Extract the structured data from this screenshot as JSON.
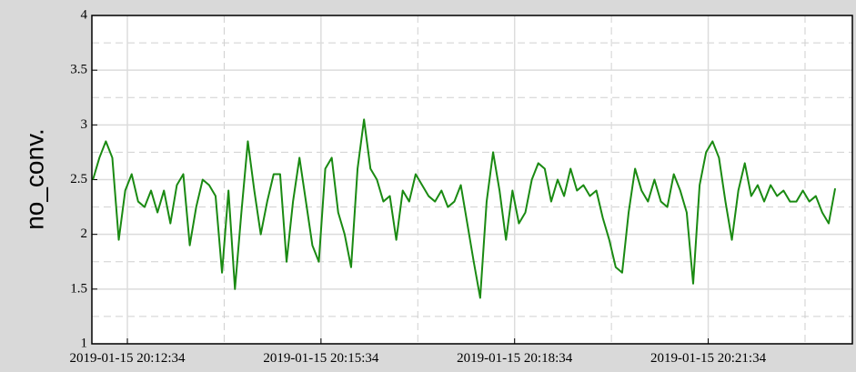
{
  "chart_data": {
    "type": "line",
    "y_label": "no_conv.",
    "x": [
      "2019-01-15 20:12:02",
      "2019-01-15 20:12:08",
      "2019-01-15 20:12:14",
      "2019-01-15 20:12:20",
      "2019-01-15 20:12:26",
      "2019-01-15 20:12:32",
      "2019-01-15 20:12:38",
      "2019-01-15 20:12:44",
      "2019-01-15 20:12:50",
      "2019-01-15 20:12:56",
      "2019-01-15 20:13:02",
      "2019-01-15 20:13:08",
      "2019-01-15 20:13:14",
      "2019-01-15 20:13:20",
      "2019-01-15 20:13:26",
      "2019-01-15 20:13:32",
      "2019-01-15 20:13:38",
      "2019-01-15 20:13:44",
      "2019-01-15 20:13:50",
      "2019-01-15 20:13:56",
      "2019-01-15 20:14:02",
      "2019-01-15 20:14:08",
      "2019-01-15 20:14:14",
      "2019-01-15 20:14:20",
      "2019-01-15 20:14:26",
      "2019-01-15 20:14:32",
      "2019-01-15 20:14:38",
      "2019-01-15 20:14:44",
      "2019-01-15 20:14:50",
      "2019-01-15 20:14:56",
      "2019-01-15 20:15:02",
      "2019-01-15 20:15:08",
      "2019-01-15 20:15:14",
      "2019-01-15 20:15:20",
      "2019-01-15 20:15:26",
      "2019-01-15 20:15:32",
      "2019-01-15 20:15:38",
      "2019-01-15 20:15:44",
      "2019-01-15 20:15:50",
      "2019-01-15 20:15:56",
      "2019-01-15 20:16:02",
      "2019-01-15 20:16:08",
      "2019-01-15 20:16:14",
      "2019-01-15 20:16:20",
      "2019-01-15 20:16:26",
      "2019-01-15 20:16:32",
      "2019-01-15 20:16:38",
      "2019-01-15 20:16:44",
      "2019-01-15 20:16:50",
      "2019-01-15 20:16:56",
      "2019-01-15 20:17:02",
      "2019-01-15 20:17:08",
      "2019-01-15 20:17:14",
      "2019-01-15 20:17:20",
      "2019-01-15 20:17:26",
      "2019-01-15 20:17:32",
      "2019-01-15 20:17:38",
      "2019-01-15 20:17:44",
      "2019-01-15 20:17:50",
      "2019-01-15 20:17:56",
      "2019-01-15 20:18:02",
      "2019-01-15 20:18:08",
      "2019-01-15 20:18:14",
      "2019-01-15 20:18:20",
      "2019-01-15 20:18:26",
      "2019-01-15 20:18:32",
      "2019-01-15 20:18:38",
      "2019-01-15 20:18:44",
      "2019-01-15 20:18:50",
      "2019-01-15 20:18:56",
      "2019-01-15 20:19:02",
      "2019-01-15 20:19:08",
      "2019-01-15 20:19:14",
      "2019-01-15 20:19:20",
      "2019-01-15 20:19:26",
      "2019-01-15 20:19:32",
      "2019-01-15 20:19:38",
      "2019-01-15 20:19:44",
      "2019-01-15 20:19:50",
      "2019-01-15 20:19:56",
      "2019-01-15 20:20:02",
      "2019-01-15 20:20:08",
      "2019-01-15 20:20:14",
      "2019-01-15 20:20:20",
      "2019-01-15 20:20:26",
      "2019-01-15 20:20:32",
      "2019-01-15 20:20:38",
      "2019-01-15 20:20:44",
      "2019-01-15 20:20:50",
      "2019-01-15 20:20:56",
      "2019-01-15 20:21:02",
      "2019-01-15 20:21:08",
      "2019-01-15 20:21:14",
      "2019-01-15 20:21:20",
      "2019-01-15 20:21:26",
      "2019-01-15 20:21:32",
      "2019-01-15 20:21:38",
      "2019-01-15 20:21:44",
      "2019-01-15 20:21:50",
      "2019-01-15 20:21:56",
      "2019-01-15 20:22:02",
      "2019-01-15 20:22:08",
      "2019-01-15 20:22:14",
      "2019-01-15 20:22:20",
      "2019-01-15 20:22:26",
      "2019-01-15 20:22:32",
      "2019-01-15 20:22:38",
      "2019-01-15 20:22:44",
      "2019-01-15 20:22:50",
      "2019-01-15 20:22:56",
      "2019-01-15 20:23:02",
      "2019-01-15 20:23:08",
      "2019-01-15 20:23:14",
      "2019-01-15 20:23:20",
      "2019-01-15 20:23:26",
      "2019-01-15 20:23:32"
    ],
    "series": [
      {
        "name": "no_conv.",
        "color": "#1a8a12",
        "values": [
          2.5,
          2.7,
          2.85,
          2.7,
          1.95,
          2.4,
          2.55,
          2.3,
          2.25,
          2.4,
          2.2,
          2.4,
          2.1,
          2.45,
          2.55,
          1.9,
          2.25,
          2.5,
          2.45,
          2.35,
          1.65,
          2.4,
          1.5,
          2.2,
          2.85,
          2.4,
          2.0,
          2.3,
          2.55,
          2.55,
          1.75,
          2.3,
          2.7,
          2.3,
          1.9,
          1.75,
          2.6,
          2.7,
          2.2,
          2.0,
          1.7,
          2.6,
          3.05,
          2.6,
          2.5,
          2.3,
          2.35,
          1.95,
          2.4,
          2.3,
          2.55,
          2.45,
          2.35,
          2.3,
          2.4,
          2.25,
          2.3,
          2.45,
          2.1,
          1.75,
          1.42,
          2.3,
          2.75,
          2.4,
          1.95,
          2.4,
          2.1,
          2.2,
          2.5,
          2.65,
          2.6,
          2.3,
          2.5,
          2.35,
          2.6,
          2.4,
          2.45,
          2.35,
          2.4,
          2.15,
          1.95,
          1.7,
          1.65,
          2.2,
          2.6,
          2.4,
          2.3,
          2.5,
          2.3,
          2.25,
          2.55,
          2.4,
          2.2,
          1.55,
          2.45,
          2.75,
          2.85,
          2.7,
          2.3,
          1.95,
          2.4,
          2.65,
          2.35,
          2.45,
          2.3,
          2.45,
          2.35,
          2.4,
          2.3,
          2.3,
          2.4,
          2.3,
          2.35,
          2.2,
          2.1,
          2.42
        ]
      }
    ],
    "xlim": [
      "2019-01-15 20:12:01",
      "2019-01-15 20:23:48"
    ],
    "xticks": [
      "2019-01-15 20:12:34",
      "2019-01-15 20:15:34",
      "2019-01-15 20:18:34",
      "2019-01-15 20:21:34"
    ],
    "ylim": [
      1,
      4
    ],
    "yticks": [
      1,
      1.5,
      2,
      2.5,
      3,
      3.5,
      4
    ],
    "grid": true
  }
}
